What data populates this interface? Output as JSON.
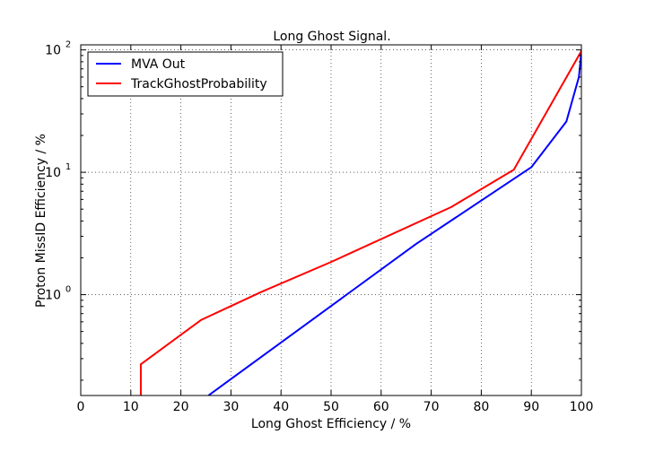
{
  "chart_data": {
    "type": "line",
    "title": "Long Ghost Signal.",
    "xlabel": "Long Ghost Efficiency / %",
    "ylabel": "Proton MissID Efficiency / %",
    "xlim": [
      0,
      100
    ],
    "ylim": [
      0.15,
      110
    ],
    "yscale": "log",
    "grid": true,
    "legend_position": "upper-left",
    "x_ticks": [
      0,
      10,
      20,
      30,
      40,
      50,
      60,
      70,
      80,
      90,
      100
    ],
    "y_ticks": [
      {
        "value": 1,
        "label": "10",
        "exp": "0"
      },
      {
        "value": 10,
        "label": "10",
        "exp": "1"
      },
      {
        "value": 100,
        "label": "10",
        "exp": "2"
      }
    ],
    "series": [
      {
        "name": "MVA Out",
        "color": "#0000ff",
        "points": [
          [
            25.5,
            0.15
          ],
          [
            67,
            2.6
          ],
          [
            90,
            11
          ],
          [
            97,
            26
          ],
          [
            99.5,
            60
          ],
          [
            99.8,
            80
          ],
          [
            100,
            100
          ]
        ]
      },
      {
        "name": "TrackGhostProbability",
        "color": "#ff0000",
        "points": [
          [
            12,
            0.15
          ],
          [
            12,
            0.27
          ],
          [
            24,
            0.62
          ],
          [
            36,
            1.05
          ],
          [
            50,
            1.85
          ],
          [
            74,
            5.2
          ],
          [
            86.5,
            10.5
          ],
          [
            100,
            98
          ]
        ]
      }
    ]
  }
}
